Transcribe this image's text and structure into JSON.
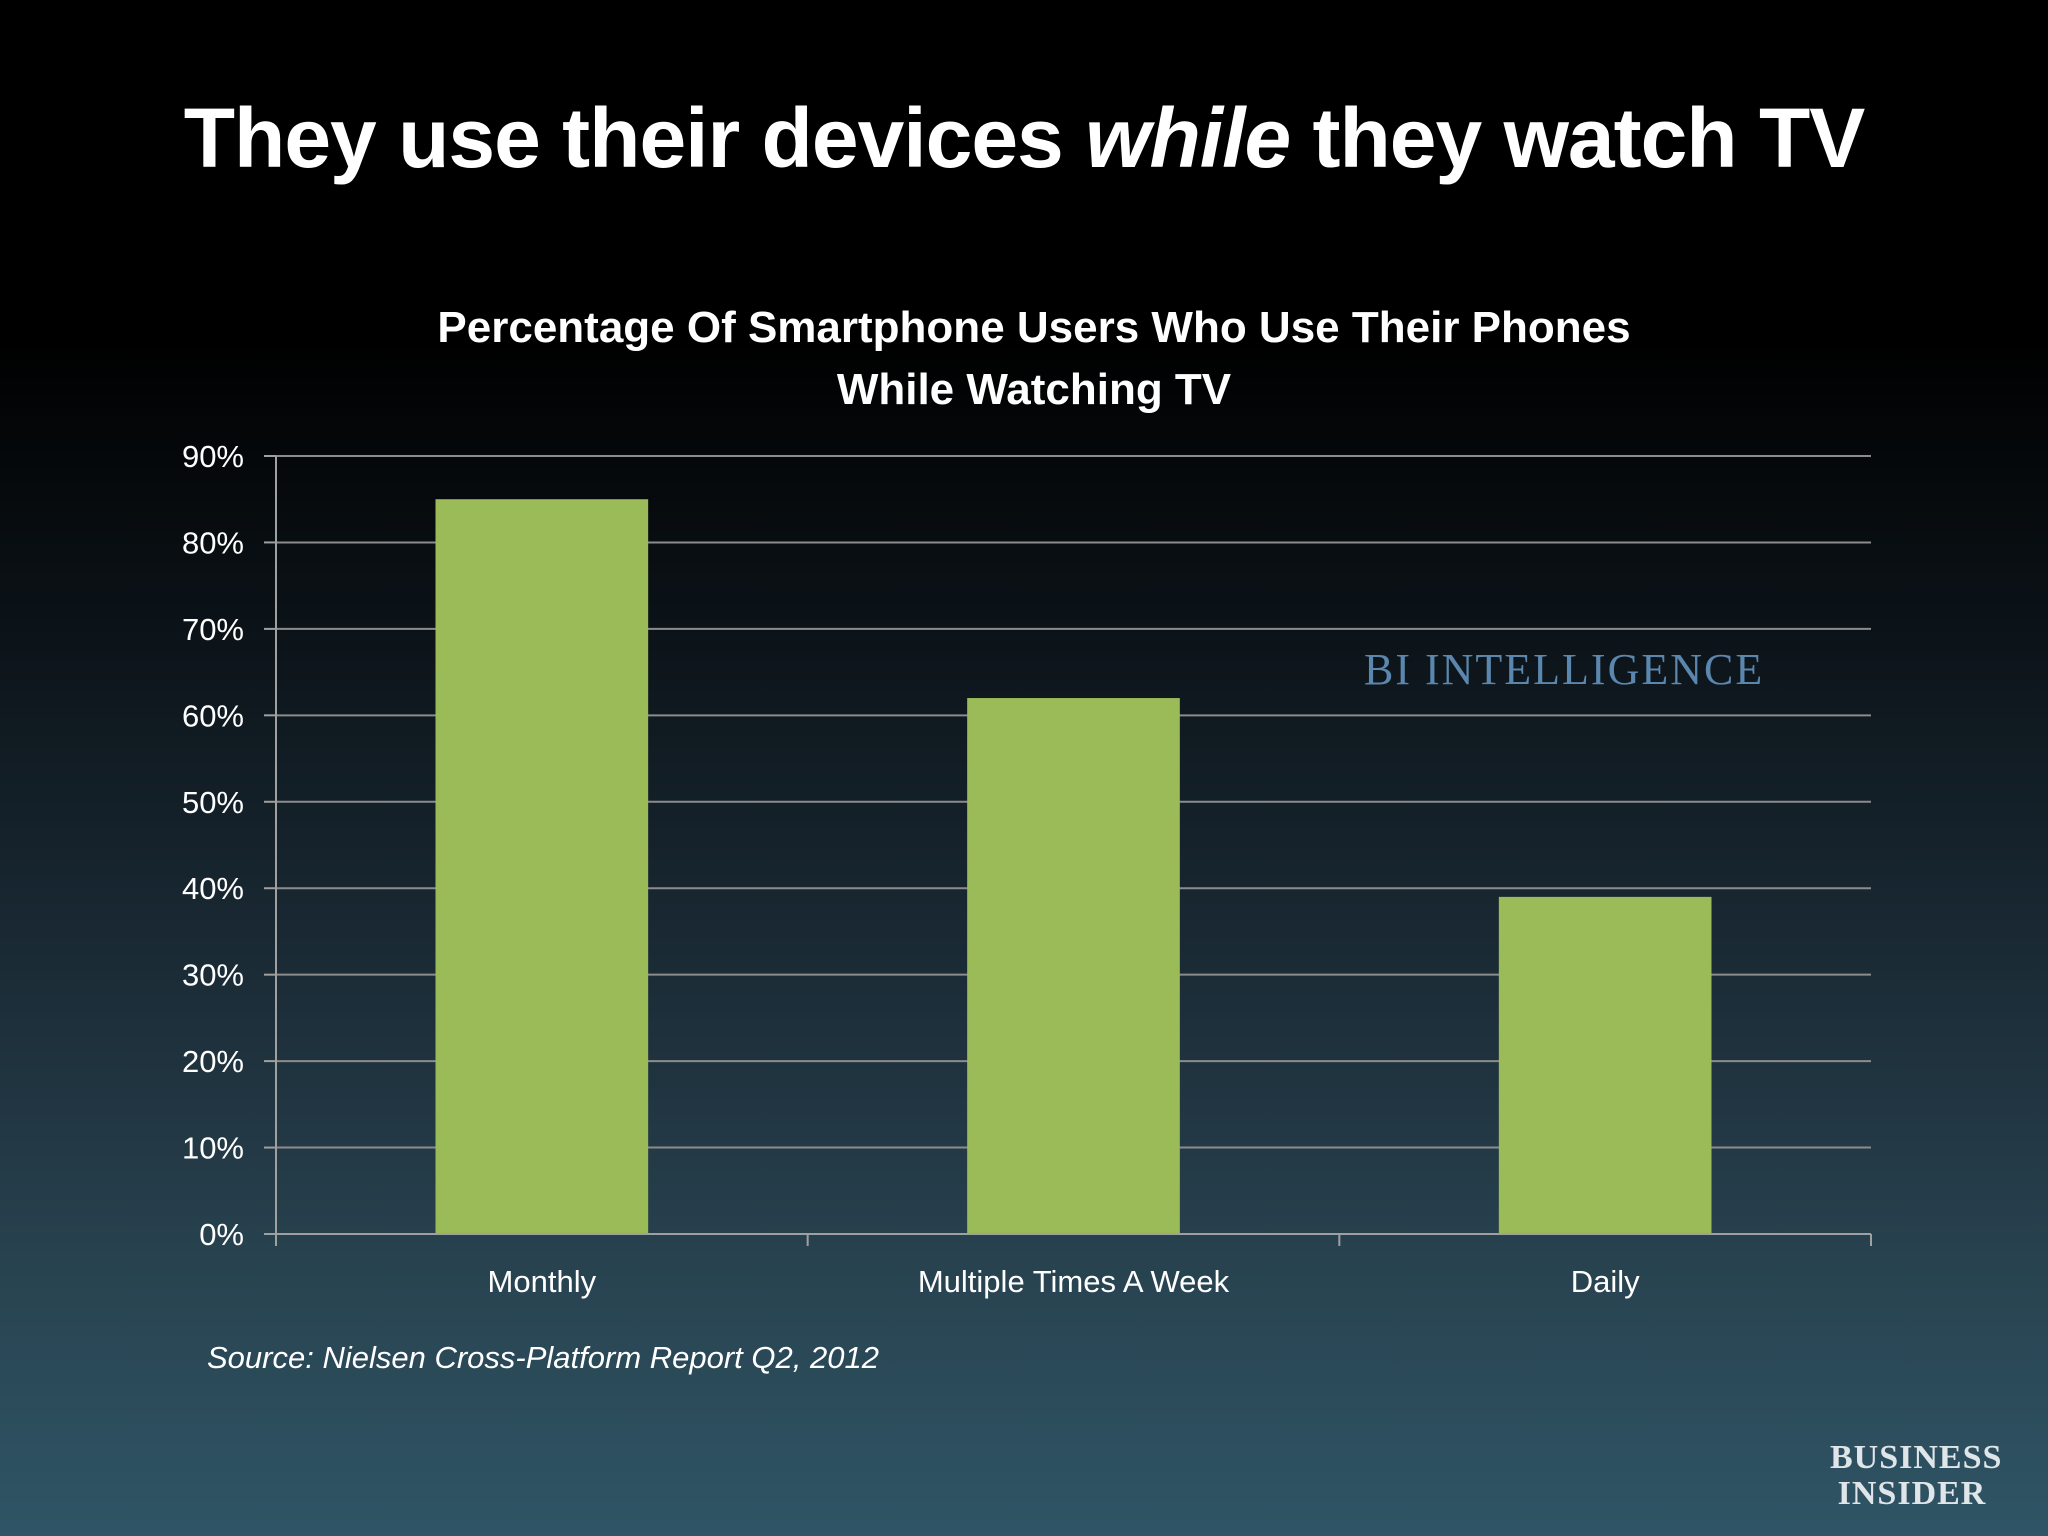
{
  "slide": {
    "title_part1": "They use their devices ",
    "title_emphasis": "while",
    "title_part2": " they watch TV",
    "source": "Source: Nielsen Cross-Platform Report Q2, 2012",
    "watermark": "BI INTELLIGENCE",
    "logo_line1": "BUSINESS",
    "logo_line2": "INSIDER"
  },
  "chart_data": {
    "type": "bar",
    "title_line1": "Percentage Of Smartphone Users Who Use Their Phones",
    "title_line2": "While Watching TV",
    "categories": [
      "Monthly",
      "Multiple Times A Week",
      "Daily"
    ],
    "values": [
      85,
      62,
      39
    ],
    "ylim": [
      0,
      90
    ],
    "yticks": [
      0,
      10,
      20,
      30,
      40,
      50,
      60,
      70,
      80,
      90
    ],
    "ytick_labels": [
      "0%",
      "10%",
      "20%",
      "30%",
      "40%",
      "50%",
      "60%",
      "70%",
      "80%",
      "90%"
    ],
    "grid": true,
    "legend": "none",
    "bar_color": "#9bbb59",
    "grid_color": "#8c8c8c",
    "axis_color": "#a0a0a0"
  }
}
